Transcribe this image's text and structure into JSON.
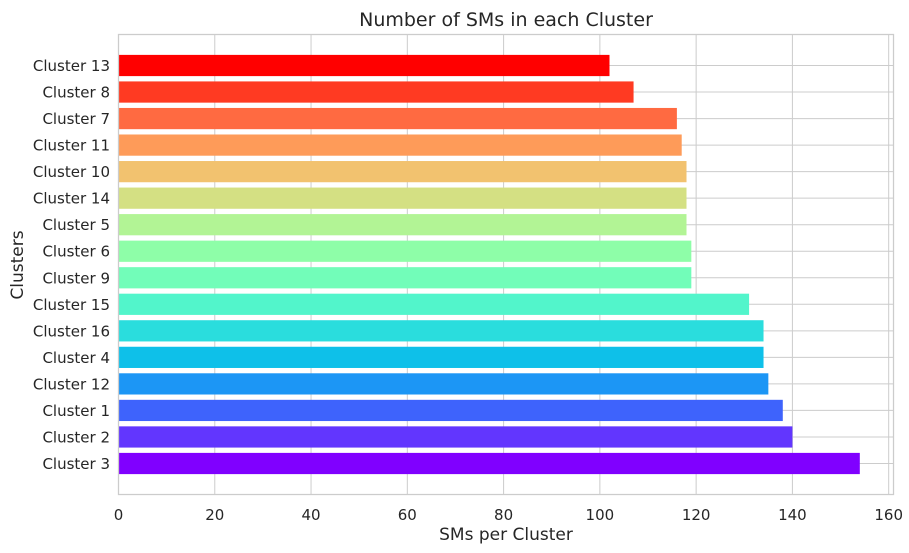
{
  "chart_data": {
    "type": "bar",
    "orientation": "horizontal",
    "title": "Number of SMs in each Cluster",
    "xlabel": "SMs per Cluster",
    "ylabel": "Clusters",
    "xlim": [
      0,
      161
    ],
    "xticks": [
      0,
      20,
      40,
      60,
      80,
      100,
      120,
      140,
      160
    ],
    "grid": true,
    "legend": "none",
    "categories": [
      "Cluster 3",
      "Cluster 2",
      "Cluster 1",
      "Cluster 12",
      "Cluster 4",
      "Cluster 16",
      "Cluster 15",
      "Cluster 9",
      "Cluster 6",
      "Cluster 5",
      "Cluster 14",
      "Cluster 10",
      "Cluster 11",
      "Cluster 7",
      "Cluster 8",
      "Cluster 13"
    ],
    "values": [
      154,
      140,
      138,
      135,
      134,
      134,
      131,
      119,
      119,
      118,
      118,
      118,
      117,
      116,
      107,
      102
    ],
    "colors": [
      "#8000ff",
      "#6236fe",
      "#3e63fc",
      "#1c96f5",
      "#0ec0e9",
      "#2adddd",
      "#52f5cb",
      "#72fdb9",
      "#8efea8",
      "#b2f495",
      "#d4e083",
      "#f2c26f",
      "#fe9b59",
      "#ff6a41",
      "#ff3a22",
      "#ff0000"
    ]
  }
}
